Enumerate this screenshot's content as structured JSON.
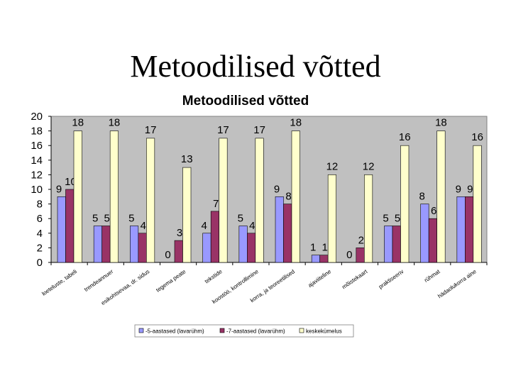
{
  "slide": {
    "title": "Metoodilised võtted"
  },
  "chart_data": {
    "type": "bar",
    "title": "Metoodilised võtted",
    "xlabel": "",
    "ylabel": "",
    "ylim": [
      0,
      20
    ],
    "yticks": [
      0,
      2,
      4,
      6,
      8,
      10,
      12,
      14,
      16,
      18,
      20
    ],
    "grid": false,
    "legend_position": "bottom",
    "categories": [
      "loeteluste, tabeli",
      "trendeannuer",
      "esikohtsevaa, dr. sidus",
      "tegema peate",
      "tekstide",
      "koostöö, kontrollimine",
      "korra, ja teoreetilised",
      "ajaviiteline",
      "mõistekaart",
      "praktiseeriv",
      "rühmat",
      "hädaolukorra aine"
    ],
    "series": [
      {
        "name": "-5-aastased (lavarühm)",
        "color": "#9999ff",
        "values": [
          9,
          5,
          5,
          0,
          4,
          5,
          9,
          1,
          0,
          5,
          8,
          9
        ]
      },
      {
        "name": "-7-aastased (lavarühm)",
        "color": "#993366",
        "values": [
          10,
          5,
          4,
          3,
          7,
          4,
          8,
          1,
          2,
          5,
          6,
          9
        ]
      },
      {
        "name": "keskekümelus",
        "color": "#ffffcc",
        "values": [
          18,
          18,
          17,
          13,
          17,
          17,
          18,
          12,
          12,
          16,
          18,
          16
        ]
      }
    ]
  }
}
